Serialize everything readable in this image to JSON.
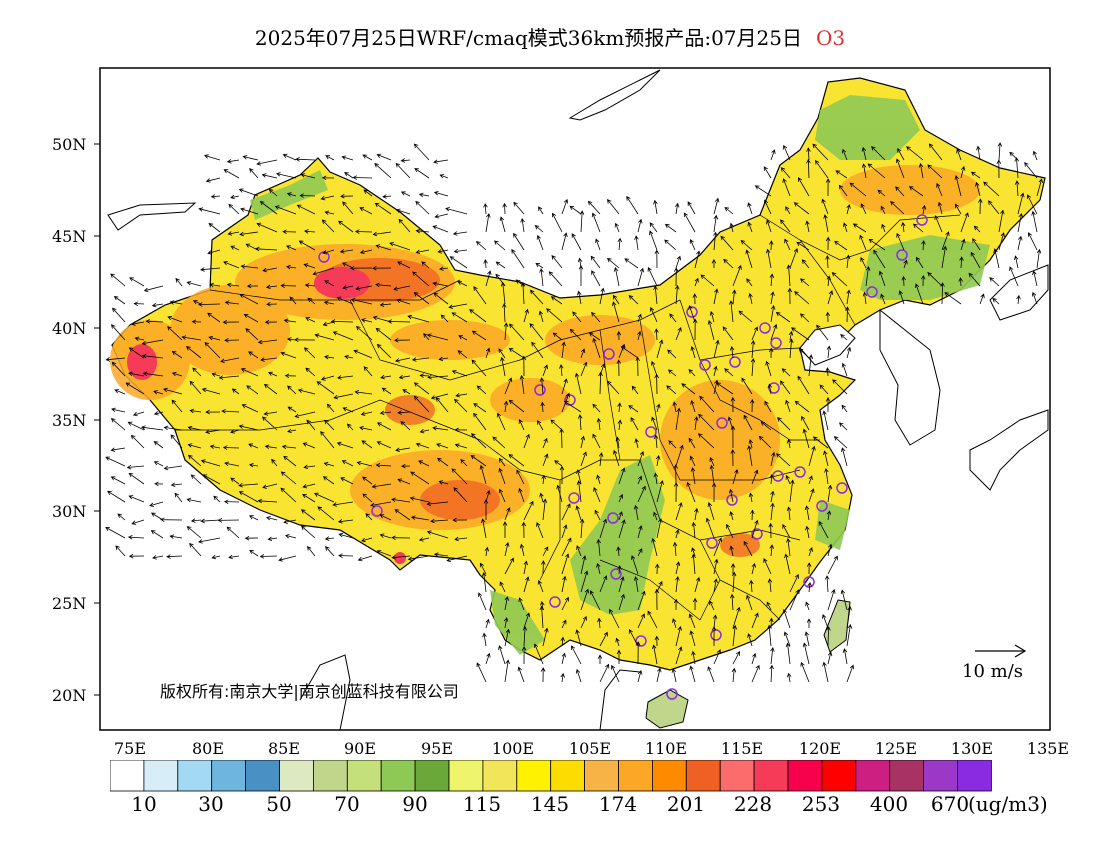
{
  "title": {
    "text": "2025年07月25日WRF/cmaq模式36km预报产品:07月25日",
    "species": "O3"
  },
  "lat_labels": [
    "50N",
    "45N",
    "40N",
    "35N",
    "30N",
    "25N",
    "20N"
  ],
  "lon_labels": [
    "75E",
    "80E",
    "85E",
    "90E",
    "95E",
    "100E",
    "105E",
    "110E",
    "115E",
    "120E",
    "125E",
    "130E",
    "135E"
  ],
  "copyright": "版权所有:南京大学|南京创蓝科技有限公司",
  "wind_legend": "10 m/s",
  "colorbar": {
    "colors": [
      "#ffffff",
      "#d7eef9",
      "#a3d9f3",
      "#6eb6e0",
      "#4990c4",
      "#dde9c1",
      "#bfd68b",
      "#c4e07b",
      "#8fc955",
      "#6ba83a",
      "#eef56a",
      "#f2e55a",
      "#fff200",
      "#fddd00",
      "#f7b345",
      "#fca826",
      "#fe8a00",
      "#ef6024",
      "#fd6c6c",
      "#f53b57",
      "#f7004c",
      "#fe0000",
      "#cd1e82",
      "#a83263",
      "#9c38c8",
      "#8a2be2"
    ],
    "labels": [
      "10",
      "30",
      "50",
      "70",
      "90",
      "115",
      "145",
      "174",
      "201",
      "228",
      "253",
      "400",
      "670"
    ],
    "unit": "(ug/m3)"
  },
  "colors": {
    "boundary": "#000000",
    "station": "#8a2be2",
    "species_label": "#e03030"
  }
}
